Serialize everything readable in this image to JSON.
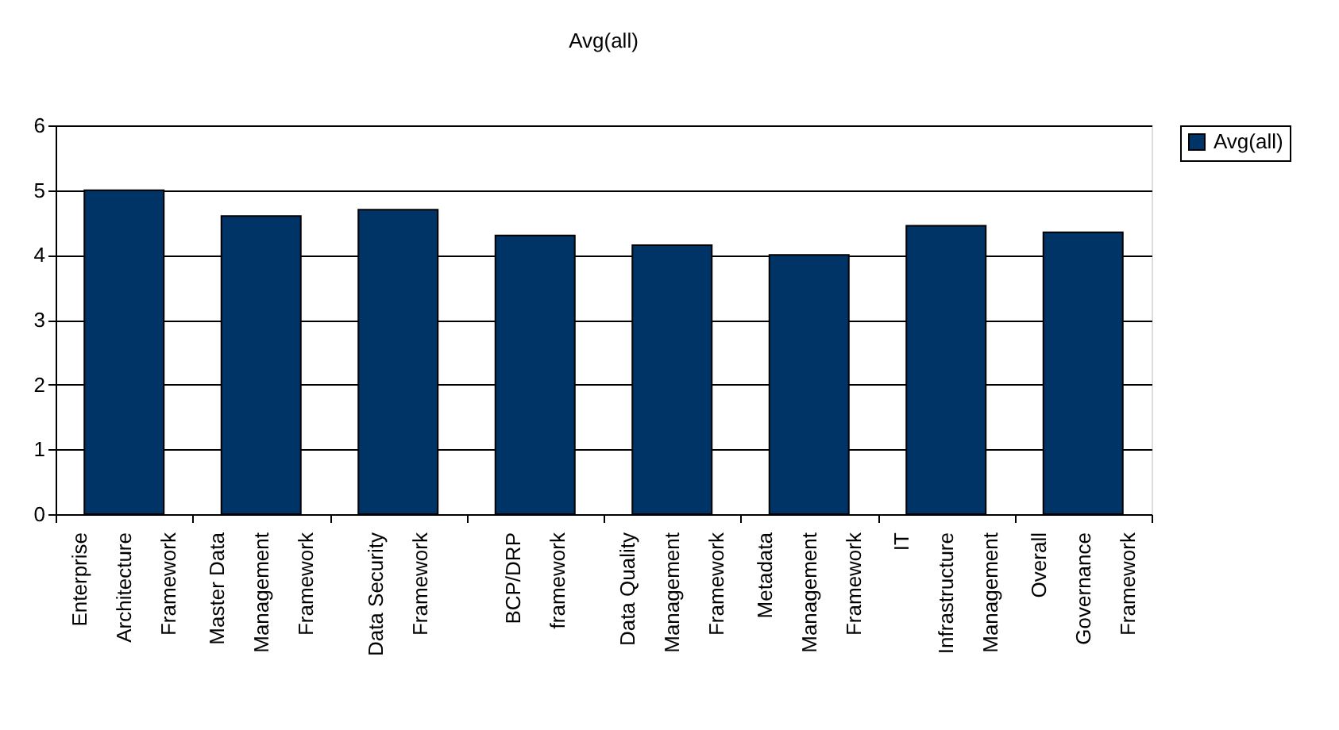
{
  "chart_data": {
    "type": "bar",
    "title": "Avg(all)",
    "categories": [
      "Enterprise\nArchitecture\nFramework",
      "Master Data\nManagement\nFramework",
      "Data Security\nFramework",
      "BCP/DRP\nframework",
      "Data Quality\nManagement\nFramework",
      "Metadata\nManagement\nFramework",
      "IT\nInfrastructure\nManagement",
      "Overall\nGovernance\nFramework"
    ],
    "series": [
      {
        "name": "Avg(all)",
        "color": "#003366",
        "values": [
          5.0,
          4.6,
          4.7,
          4.3,
          4.15,
          4.0,
          4.45,
          4.35
        ]
      }
    ],
    "ylim": [
      0,
      6
    ],
    "yticks": [
      0,
      1,
      2,
      3,
      4,
      5,
      6
    ],
    "grid": "y",
    "legend": "right"
  }
}
